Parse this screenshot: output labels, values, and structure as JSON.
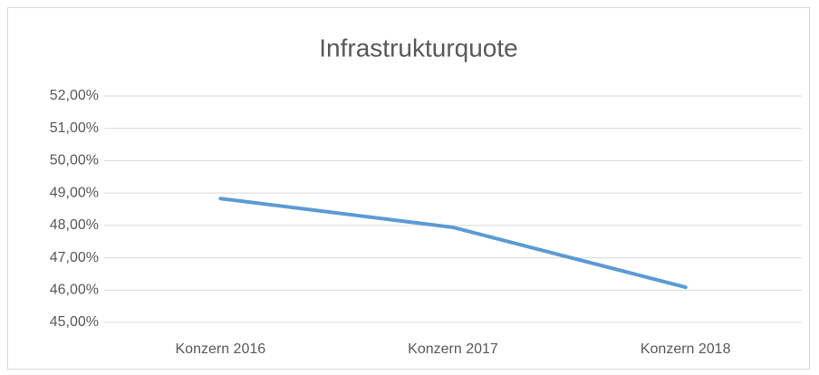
{
  "chart_data": {
    "type": "line",
    "title": "Infrastrukturquote",
    "categories": [
      "Konzern 2016",
      "Konzern 2017",
      "Konzern 2018"
    ],
    "series": [
      {
        "name": "Infrastrukturquote",
        "color": "#5b9bd5",
        "values": [
          48.83,
          47.94,
          46.09
        ]
      }
    ],
    "ylim": [
      45,
      52
    ],
    "yticks": [
      {
        "value": 45,
        "label": "45,00%"
      },
      {
        "value": 46,
        "label": "46,00%"
      },
      {
        "value": 47,
        "label": "47,00%"
      },
      {
        "value": 48,
        "label": "48,00%"
      },
      {
        "value": 49,
        "label": "49,00%"
      },
      {
        "value": 50,
        "label": "50,00%"
      },
      {
        "value": 51,
        "label": "51,00%"
      },
      {
        "value": 52,
        "label": "52,00%"
      }
    ],
    "grid": true
  }
}
